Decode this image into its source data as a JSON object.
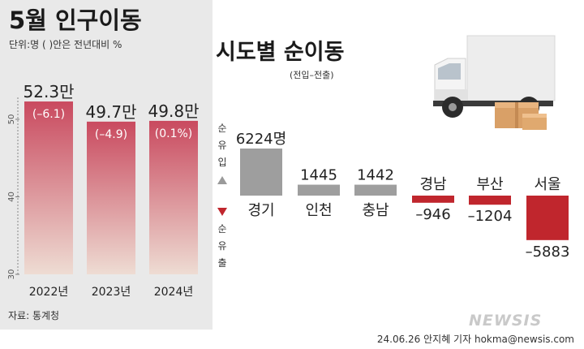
{
  "left_chart": {
    "title": "5월 인구이동",
    "unit_note": "단위:명 ( )안은 전년대비 %",
    "source": "자료: 통계청",
    "chart_data": {
      "type": "bar",
      "categories": [
        "2022년",
        "2023년",
        "2024년"
      ],
      "values": [
        52.3,
        49.7,
        49.8
      ],
      "value_labels": [
        "52.3만",
        "49.7만",
        "49.8만"
      ],
      "change_labels": [
        "(–6.1)",
        "(–4.9)",
        "(0.1%)"
      ],
      "yticks": [
        "50",
        "40",
        "30"
      ],
      "ylim": [
        30,
        52.3
      ]
    }
  },
  "right_chart": {
    "title": "시도별 순이동",
    "subtitle": "(전입–전출)",
    "inflow_label": "순유입",
    "outflow_label": "순유출",
    "chart_data": {
      "type": "bar",
      "categories": [
        "경기",
        "인천",
        "충남",
        "경남",
        "부산",
        "서울"
      ],
      "values": [
        6224,
        1445,
        1442,
        -946,
        -1204,
        -5883
      ],
      "value_labels": [
        "6224명",
        "1445",
        "1442",
        "–946",
        "–1204",
        "–5883"
      ]
    }
  },
  "credit": {
    "date_author": "24.06.26 안지혜 기자",
    "email": "hokma@newsis.com",
    "logo": "NEWSIS"
  },
  "colors": {
    "pos": "#9e9e9e",
    "neg": "#c0262d",
    "left_top": "#c94a5f",
    "left_bottom": "#eddbd2"
  }
}
